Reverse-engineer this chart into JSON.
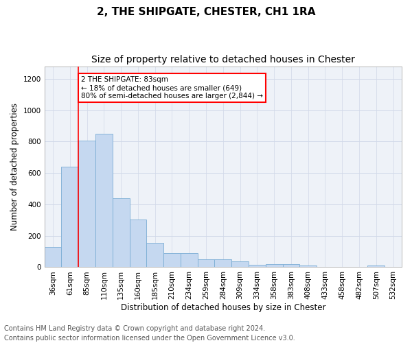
{
  "title": "2, THE SHIPGATE, CHESTER, CH1 1RA",
  "subtitle": "Size of property relative to detached houses in Chester",
  "xlabel": "Distribution of detached houses by size in Chester",
  "ylabel": "Number of detached properties",
  "footer_line1": "Contains HM Land Registry data © Crown copyright and database right 2024.",
  "footer_line2": "Contains public sector information licensed under the Open Government Licence v3.0.",
  "categories": [
    "36sqm",
    "61sqm",
    "85sqm",
    "110sqm",
    "135sqm",
    "160sqm",
    "185sqm",
    "210sqm",
    "234sqm",
    "259sqm",
    "284sqm",
    "309sqm",
    "334sqm",
    "358sqm",
    "383sqm",
    "408sqm",
    "433sqm",
    "458sqm",
    "482sqm",
    "507sqm",
    "532sqm"
  ],
  "values": [
    130,
    640,
    805,
    850,
    440,
    305,
    155,
    90,
    90,
    50,
    48,
    35,
    15,
    18,
    18,
    10,
    0,
    0,
    0,
    10,
    0
  ],
  "bar_color": "#c5d8f0",
  "bar_edge_color": "#7aadd4",
  "red_line_x": 1.5,
  "annotation_line1": "2 THE SHIPGATE: 83sqm",
  "annotation_line2": "← 18% of detached houses are smaller (649)",
  "annotation_line3": "80% of semi-detached houses are larger (2,844) →",
  "annotation_box_color": "white",
  "annotation_box_edge": "red",
  "ylim": [
    0,
    1280
  ],
  "yticks": [
    0,
    200,
    400,
    600,
    800,
    1000,
    1200
  ],
  "bg_color": "white",
  "plot_bg_color": "#eef2f8",
  "grid_color": "#d0d8e8",
  "title_fontsize": 11,
  "subtitle_fontsize": 10,
  "axis_label_fontsize": 8.5,
  "tick_fontsize": 7.5,
  "annot_fontsize": 7.5,
  "footer_fontsize": 7
}
